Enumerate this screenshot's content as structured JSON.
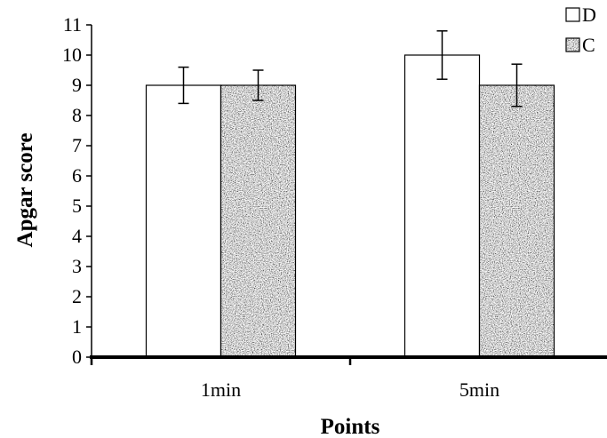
{
  "chart_data": {
    "type": "bar",
    "categories": [
      "1min",
      "5min"
    ],
    "series": [
      {
        "name": "D",
        "values": [
          9,
          10
        ],
        "errors": [
          0.6,
          0.8
        ],
        "fill": "white"
      },
      {
        "name": "C",
        "values": [
          9,
          9
        ],
        "errors": [
          0.5,
          0.7
        ],
        "fill": "speckled-gray"
      }
    ],
    "xlabel": "Points",
    "ylabel": "Apgar  score",
    "ylim": [
      0,
      11
    ],
    "yticks": [
      0,
      1,
      2,
      3,
      4,
      5,
      6,
      7,
      8,
      9,
      10,
      11
    ],
    "grid": false,
    "legend_position": "top-right",
    "colors": {
      "axis": "#000000",
      "bar_border": "#000000",
      "bar_d": "#ffffff",
      "bar_c_base": "#a9a9a9"
    }
  }
}
